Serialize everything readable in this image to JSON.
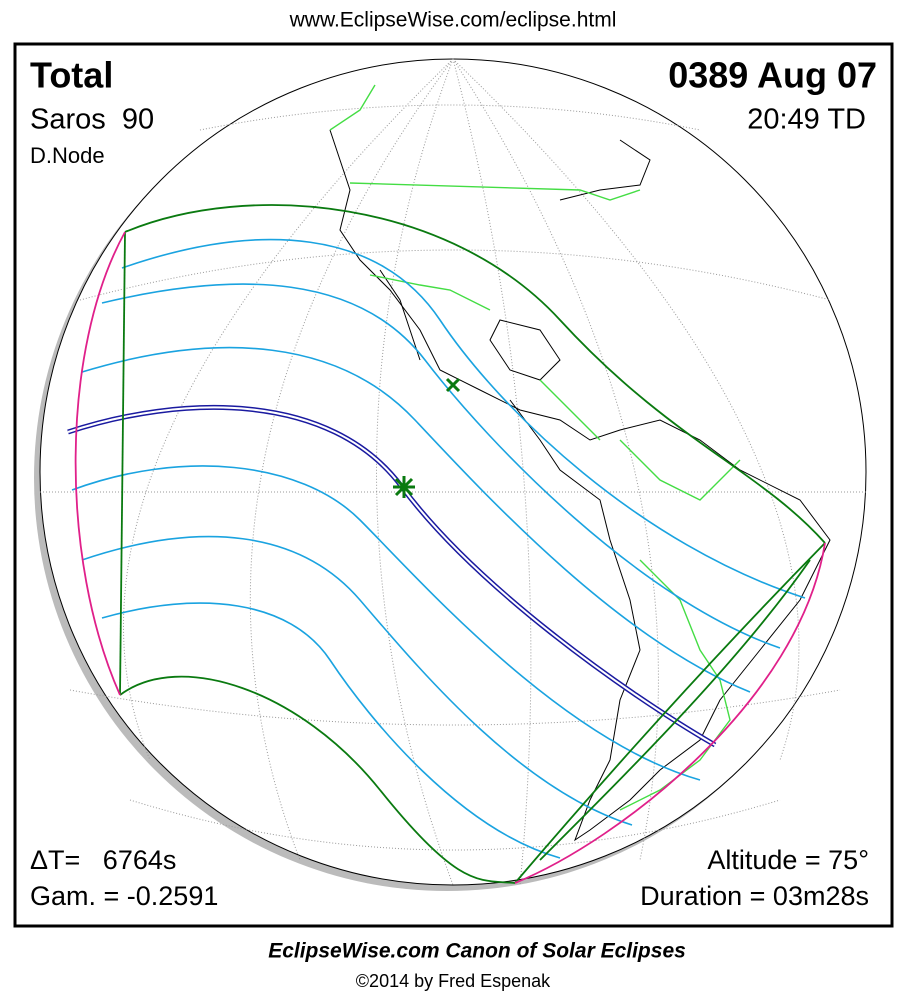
{
  "header": {
    "url": "www.EclipseWise.com/eclipse.html"
  },
  "map": {
    "type": "Total",
    "saros": "Saros  90",
    "node": "D.Node",
    "date": "0389 Aug 07",
    "time": "20:49 TD",
    "delta_t": "ΔT=   6764s",
    "gamma": "Gam. = -0.2591",
    "altitude": "Altitude = 75°",
    "duration": "Duration = 03m28s"
  },
  "footer": {
    "title": "EclipseWise.com Canon of Solar Eclipses",
    "credit": "©2014 by Fred Espenak"
  }
}
